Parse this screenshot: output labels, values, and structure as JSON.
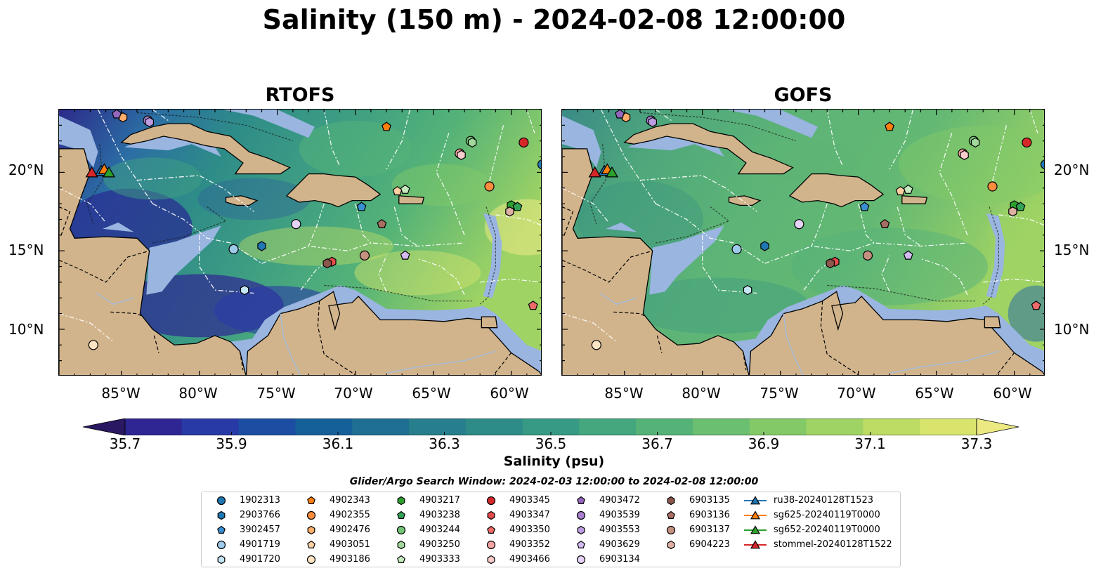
{
  "title": "Salinity (150 m) - 2024-02-08 12:00:00",
  "panels": [
    {
      "title": "RTOFS"
    },
    {
      "title": "GOFS"
    }
  ],
  "axes": {
    "lon_labels": [
      "85°W",
      "80°W",
      "75°W",
      "70°W",
      "65°W",
      "60°W"
    ],
    "lat_labels": [
      "20°N",
      "15°N",
      "10°N"
    ],
    "lon_range": [
      -89.0,
      -58.0
    ],
    "lat_range": [
      7.0,
      24.0
    ]
  },
  "colorbar": {
    "label": "Salinity (psu)",
    "ticks": [
      "35.7",
      "35.9",
      "36.1",
      "36.3",
      "36.5",
      "36.7",
      "36.9",
      "37.1",
      "37.3"
    ],
    "range": [
      35.7,
      37.3
    ],
    "colors": [
      "#2a1863",
      "#2f2693",
      "#283aa6",
      "#1b4ea3",
      "#16609a",
      "#1e6f92",
      "#277e8c",
      "#2e8c88",
      "#379a84",
      "#44a77e",
      "#55b377",
      "#6abf70",
      "#83c968",
      "#9fd364",
      "#bcdc64",
      "#d8e46c",
      "#ece983"
    ],
    "extend": "both"
  },
  "search_window": "Glider/Argo Search Window: 2024-02-03 12:00:00 to 2024-02-08 12:00:00",
  "legend": {
    "columns": [
      [
        {
          "label": "1902313",
          "marker": "circle",
          "color": "#1f77b4"
        },
        {
          "label": "2903766",
          "marker": "hexagon",
          "color": "#1f77b4"
        },
        {
          "label": "3902457",
          "marker": "pentagon",
          "color": "#3a8ed2"
        },
        {
          "label": "4901719",
          "marker": "circle",
          "color": "#9ecae9"
        },
        {
          "label": "4901720",
          "marker": "hexagon",
          "color": "#c6e6f5"
        }
      ],
      [
        {
          "label": "4902343",
          "marker": "pentagon",
          "color": "#ff7f0e"
        },
        {
          "label": "4902355",
          "marker": "circle",
          "color": "#fd8d3c"
        },
        {
          "label": "4902476",
          "marker": "hexagon",
          "color": "#fdae6b"
        },
        {
          "label": "4903051",
          "marker": "pentagon",
          "color": "#fdd0a2"
        },
        {
          "label": "4903186",
          "marker": "circle",
          "color": "#fde4c4"
        }
      ],
      [
        {
          "label": "4903217",
          "marker": "hexagon",
          "color": "#2ca02c"
        },
        {
          "label": "4903238",
          "marker": "pentagon",
          "color": "#31a354"
        },
        {
          "label": "4903244",
          "marker": "circle",
          "color": "#74c476"
        },
        {
          "label": "4903250",
          "marker": "hexagon",
          "color": "#a1d99b"
        },
        {
          "label": "4903333",
          "marker": "pentagon",
          "color": "#c7e9c0"
        }
      ],
      [
        {
          "label": "4903345",
          "marker": "circle",
          "color": "#d62728"
        },
        {
          "label": "4903347",
          "marker": "hexagon",
          "color": "#e34a4a"
        },
        {
          "label": "4903350",
          "marker": "pentagon",
          "color": "#ef6a6a"
        },
        {
          "label": "4903352",
          "marker": "circle",
          "color": "#f4a3a3"
        },
        {
          "label": "4903466",
          "marker": "hexagon",
          "color": "#f9cccc"
        }
      ],
      [
        {
          "label": "4903472",
          "marker": "pentagon",
          "color": "#9467bd"
        },
        {
          "label": "4903539",
          "marker": "circle",
          "color": "#a880cf"
        },
        {
          "label": "4903553",
          "marker": "hexagon",
          "color": "#bc9be0"
        },
        {
          "label": "4903629",
          "marker": "pentagon",
          "color": "#d3baf0"
        },
        {
          "label": "6903134",
          "marker": "circle",
          "color": "#e5d3f8"
        }
      ],
      [
        {
          "label": "6903135",
          "marker": "hexagon",
          "color": "#8c564b"
        },
        {
          "label": "6903136",
          "marker": "pentagon",
          "color": "#a86f62"
        },
        {
          "label": "6903137",
          "marker": "circle",
          "color": "#c49080"
        },
        {
          "label": "6904223",
          "marker": "hexagon",
          "color": "#deb0a3"
        }
      ],
      [
        {
          "label": "ru38-20240128T1523",
          "marker": "triangle",
          "color": "#1f77b4"
        },
        {
          "label": "sg625-20240119T0000",
          "marker": "triangle",
          "color": "#ff7f0e"
        },
        {
          "label": "sg652-20240119T0000",
          "marker": "triangle",
          "color": "#2ca02c"
        },
        {
          "label": "stommel-20240128T1522",
          "marker": "triangle",
          "color": "#d62728"
        }
      ]
    ]
  },
  "observations": [
    {
      "id": "1902313",
      "lon": -58.0,
      "lat": 20.5,
      "marker": "circle",
      "color": "#1f77b4"
    },
    {
      "id": "2903766",
      "lon": -76.0,
      "lat": 15.3,
      "marker": "hexagon",
      "color": "#1f77b4"
    },
    {
      "id": "3902457",
      "lon": -69.6,
      "lat": 17.8,
      "marker": "pentagon",
      "color": "#3a8ed2"
    },
    {
      "id": "4901719",
      "lon": -77.8,
      "lat": 15.1,
      "marker": "circle",
      "color": "#9ecae9"
    },
    {
      "id": "4901720",
      "lon": -77.1,
      "lat": 12.5,
      "marker": "hexagon",
      "color": "#c6e6f5"
    },
    {
      "id": "4902343",
      "lon": -68.0,
      "lat": 22.9,
      "marker": "pentagon",
      "color": "#ff7f0e"
    },
    {
      "id": "4902355",
      "lon": -61.4,
      "lat": 19.1,
      "marker": "circle",
      "color": "#fd8d3c"
    },
    {
      "id": "4902476",
      "lon": -84.9,
      "lat": 23.5,
      "marker": "hexagon",
      "color": "#fdae6b"
    },
    {
      "id": "4903051",
      "lon": -67.3,
      "lat": 18.8,
      "marker": "pentagon",
      "color": "#fdd0a2"
    },
    {
      "id": "4903186",
      "lon": -86.8,
      "lat": 9.0,
      "marker": "circle",
      "color": "#fde4c4"
    },
    {
      "id": "4903217",
      "lon": -60.0,
      "lat": 17.9,
      "marker": "hexagon",
      "color": "#2ca02c"
    },
    {
      "id": "4903238",
      "lon": -59.6,
      "lat": 17.8,
      "marker": "pentagon",
      "color": "#31a354"
    },
    {
      "id": "4903244",
      "lon": -62.6,
      "lat": 22.0,
      "marker": "circle",
      "color": "#74c476"
    },
    {
      "id": "4903250",
      "lon": -62.5,
      "lat": 21.9,
      "marker": "hexagon",
      "color": "#a1d99b"
    },
    {
      "id": "4903333",
      "lon": -66.8,
      "lat": 18.9,
      "marker": "pentagon",
      "color": "#c7e9c0"
    },
    {
      "id": "4903345",
      "lon": -59.2,
      "lat": 21.9,
      "marker": "circle",
      "color": "#d62728"
    },
    {
      "id": "4903347",
      "lon": -71.5,
      "lat": 14.3,
      "marker": "hexagon",
      "color": "#e34a4a"
    },
    {
      "id": "4903350",
      "lon": -58.6,
      "lat": 11.5,
      "marker": "pentagon",
      "color": "#ef6a6a"
    },
    {
      "id": "4903352",
      "lon": -63.3,
      "lat": 21.2,
      "marker": "circle",
      "color": "#f4a3a3"
    },
    {
      "id": "4903466",
      "lon": -63.2,
      "lat": 21.1,
      "marker": "hexagon",
      "color": "#f9cccc"
    },
    {
      "id": "4903472",
      "lon": -85.3,
      "lat": 23.7,
      "marker": "pentagon",
      "color": "#9467bd"
    },
    {
      "id": "4903539",
      "lon": -83.3,
      "lat": 23.3,
      "marker": "circle",
      "color": "#a880cf"
    },
    {
      "id": "4903553",
      "lon": -83.2,
      "lat": 23.2,
      "marker": "hexagon",
      "color": "#bc9be0"
    },
    {
      "id": "4903629",
      "lon": -66.8,
      "lat": 14.7,
      "marker": "pentagon",
      "color": "#d3baf0"
    },
    {
      "id": "6903134",
      "lon": -73.8,
      "lat": 16.7,
      "marker": "circle",
      "color": "#e5d3f8"
    },
    {
      "id": "6903135",
      "lon": -71.8,
      "lat": 14.2,
      "marker": "hexagon",
      "color": "#8c564b"
    },
    {
      "id": "6903136",
      "lon": -68.3,
      "lat": 16.7,
      "marker": "pentagon",
      "color": "#a86f62"
    },
    {
      "id": "6903137",
      "lon": -69.4,
      "lat": 14.7,
      "marker": "circle",
      "color": "#c49080"
    },
    {
      "id": "6904223",
      "lon": -60.1,
      "lat": 17.5,
      "marker": "hexagon",
      "color": "#deb0a3"
    },
    {
      "id": "ru38-20240128T1523",
      "lon": -86.3,
      "lat": 20.1,
      "marker": "triangle",
      "color": "#1f77b4"
    },
    {
      "id": "sg625-20240119T0000",
      "lon": -86.1,
      "lat": 20.2,
      "marker": "triangle",
      "color": "#ff7f0e"
    },
    {
      "id": "sg652-20240119T0000",
      "lon": -85.8,
      "lat": 20.0,
      "marker": "triangle",
      "color": "#2ca02c"
    },
    {
      "id": "stommel-20240128T1522",
      "lon": -86.9,
      "lat": 20.0,
      "marker": "triangle",
      "color": "#d62728"
    }
  ]
}
